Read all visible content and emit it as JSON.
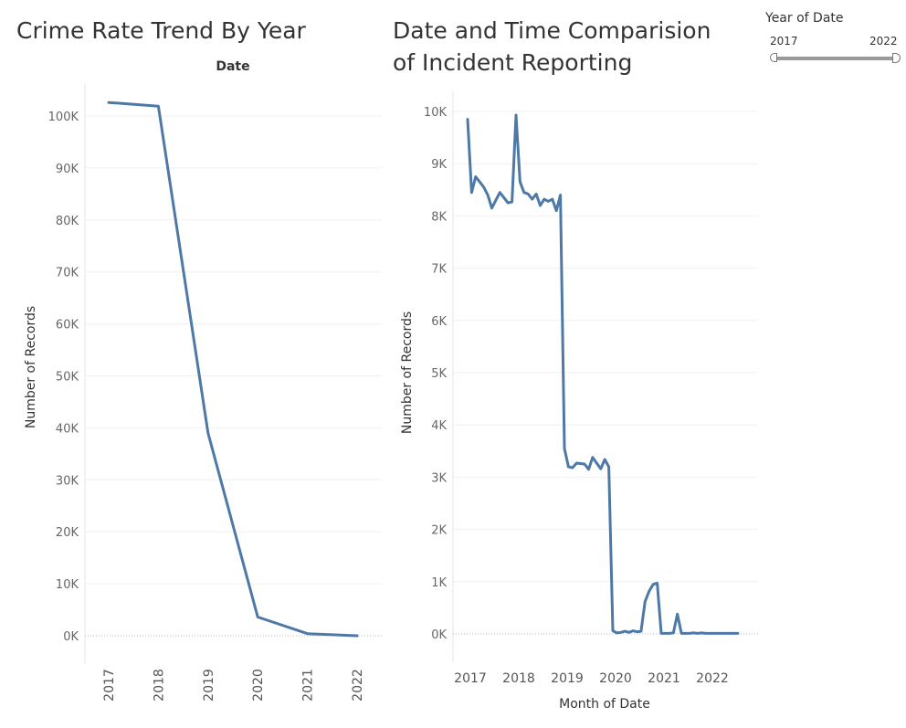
{
  "filter": {
    "title": "Year of Date",
    "min_label": "2017",
    "max_label": "2022",
    "selected_range": [
      2017,
      2022
    ]
  },
  "chart_data": [
    {
      "type": "line",
      "title": "Crime Rate Trend By Year",
      "header": "Date",
      "xlabel": "",
      "ylabel": "Number of Records",
      "categories": [
        "2017",
        "2018",
        "2019",
        "2020",
        "2021",
        "2022"
      ],
      "values": [
        102600,
        101900,
        39000,
        3600,
        400,
        0
      ],
      "y_ticks": [
        "0K",
        "10K",
        "20K",
        "30K",
        "40K",
        "50K",
        "60K",
        "70K",
        "80K",
        "90K",
        "100K"
      ],
      "ylim": [
        0,
        105000
      ],
      "grid": true,
      "color": "#4e79a7"
    },
    {
      "type": "line",
      "title": "Date and Time Comparision of Incident Reporting",
      "xlabel": "Month of Date",
      "ylabel": "Number of Records",
      "x_ticks": [
        "2017",
        "2018",
        "2019",
        "2020",
        "2021",
        "2022"
      ],
      "y_ticks": [
        "0K",
        "1K",
        "2K",
        "3K",
        "4K",
        "5K",
        "6K",
        "7K",
        "8K",
        "9K",
        "10K"
      ],
      "ylim": [
        0,
        10200
      ],
      "grid": true,
      "color": "#4e79a7",
      "x": [
        "2017-01",
        "2017-02",
        "2017-03",
        "2017-04",
        "2017-05",
        "2017-06",
        "2017-07",
        "2017-08",
        "2017-09",
        "2017-10",
        "2017-11",
        "2017-12",
        "2018-01",
        "2018-02",
        "2018-03",
        "2018-04",
        "2018-05",
        "2018-06",
        "2018-07",
        "2018-08",
        "2018-09",
        "2018-10",
        "2018-11",
        "2018-12",
        "2019-01",
        "2019-02",
        "2019-03",
        "2019-04",
        "2019-05",
        "2019-06",
        "2019-07",
        "2019-08",
        "2019-09",
        "2019-10",
        "2019-11",
        "2019-12",
        "2020-01",
        "2020-02",
        "2020-03",
        "2020-04",
        "2020-05",
        "2020-06",
        "2020-07",
        "2020-08",
        "2020-09",
        "2020-10",
        "2020-11",
        "2020-12",
        "2021-01",
        "2021-02",
        "2021-03",
        "2021-04",
        "2021-05",
        "2021-06",
        "2021-07",
        "2021-08",
        "2021-09",
        "2021-10",
        "2021-11",
        "2021-12",
        "2022-01",
        "2022-02",
        "2022-03",
        "2022-04",
        "2022-05",
        "2022-06",
        "2022-07",
        "2022-08"
      ],
      "y": [
        9850,
        8450,
        8750,
        8650,
        8550,
        8400,
        8150,
        8300,
        8450,
        8350,
        8250,
        8270,
        9930,
        8650,
        8450,
        8420,
        8320,
        8420,
        8200,
        8320,
        8280,
        8320,
        8100,
        8400,
        3550,
        3200,
        3180,
        3270,
        3260,
        3250,
        3150,
        3380,
        3270,
        3160,
        3340,
        3200,
        60,
        20,
        30,
        50,
        30,
        60,
        40,
        50,
        620,
        820,
        950,
        970,
        10,
        10,
        10,
        20,
        380,
        10,
        10,
        10,
        20,
        10,
        20,
        10,
        10,
        10,
        10,
        10,
        10,
        10,
        10,
        10
      ]
    }
  ]
}
